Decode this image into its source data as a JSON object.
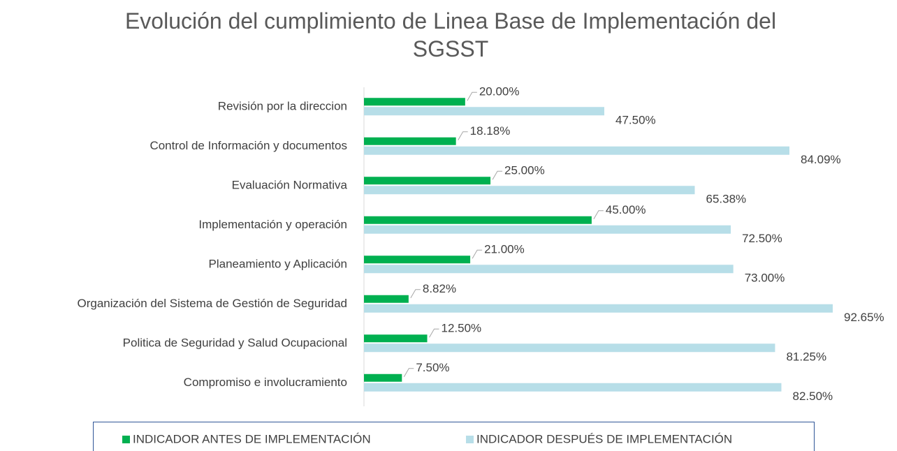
{
  "chart_data": {
    "type": "bar",
    "orientation": "horizontal",
    "title": "Evolución del cumplimiento de Linea Base de Implementación del SGSST",
    "categories": [
      "Revisión por la direccion",
      "Control de Información y documentos",
      "Evaluación Normativa",
      "Implementación y operación",
      "Planeamiento y Aplicación",
      "Organización del Sistema de Gestión de Seguridad",
      "Politica de Seguridad y Salud Ocupacional",
      "Compromiso e involucramiento"
    ],
    "series": [
      {
        "name": "INDICADOR ANTES DE IMPLEMENTACIÓN",
        "color": "#00b050",
        "values": [
          20,
          18.18,
          25,
          45,
          21,
          8.82,
          12.5,
          7.5
        ],
        "value_labels": [
          "20.00%",
          "18.18%",
          "25.00%",
          "45.00%",
          "21.00%",
          "8.82%",
          "12.50%",
          "7.50%"
        ]
      },
      {
        "name": "INDICADOR DESPUÉS DE IMPLEMENTACIÓN",
        "color": "#b7dee8",
        "values": [
          47.5,
          84.09,
          65.38,
          72.5,
          73,
          92.65,
          81.25,
          82.5
        ],
        "value_labels": [
          "47.50%",
          "84.09%",
          "65.38%",
          "72.50%",
          "73.00%",
          "92.65%",
          "81.25%",
          "82.50%"
        ]
      }
    ],
    "legend": "bottom"
  }
}
